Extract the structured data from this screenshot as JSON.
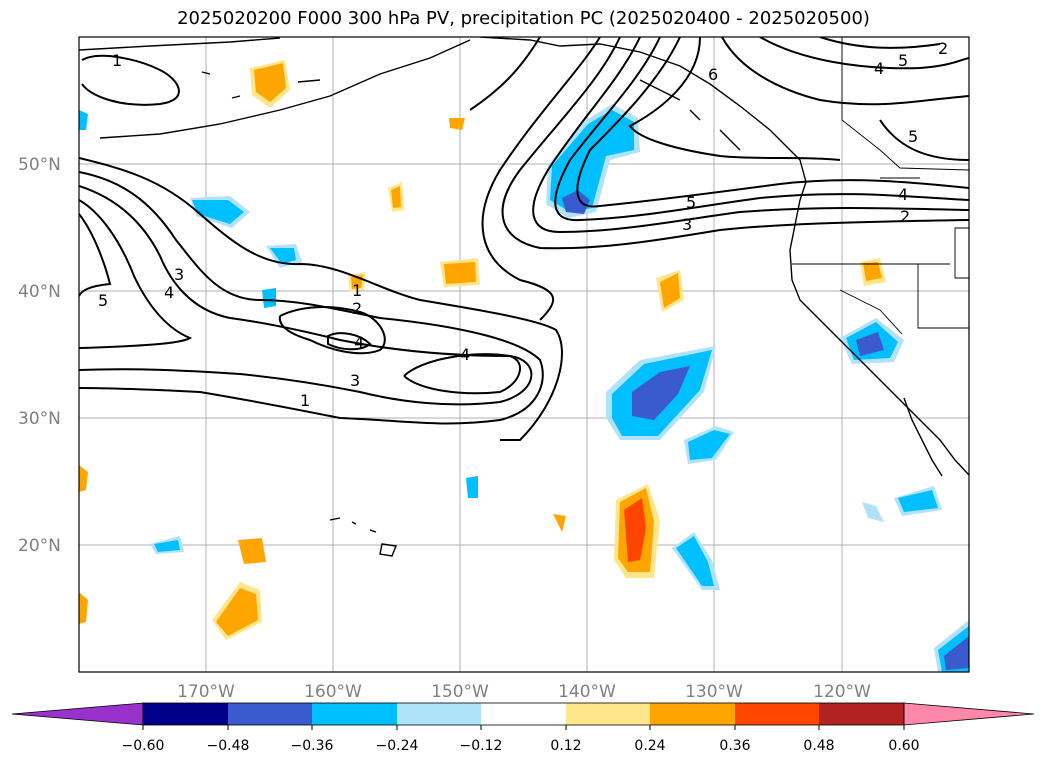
{
  "title": "2025020200 F000 300 hPa PV, precipitation PC (2025020400 - 2025020500)",
  "map": {
    "projection": "plate-carree",
    "lon_range": [
      -180,
      -110
    ],
    "lat_range": [
      10,
      60
    ],
    "lat_labels": [
      "20°N",
      "30°N",
      "40°N",
      "50°N"
    ],
    "lon_labels": [
      "170°W",
      "160°W",
      "150°W",
      "140°W",
      "130°W",
      "120°W"
    ],
    "grid_color": "#b0b0b0",
    "contour_color": "#000000",
    "pv_contour_labels": [
      "1",
      "1",
      "1",
      "2",
      "2",
      "3",
      "3",
      "3",
      "4",
      "4",
      "4",
      "4",
      "5",
      "5",
      "5",
      "6",
      "2"
    ]
  },
  "colorbar": {
    "tick_labels": [
      "−0.60",
      "−0.48",
      "−0.36",
      "−0.24",
      "−0.12",
      "0.12",
      "0.24",
      "0.36",
      "0.48",
      "0.60"
    ],
    "colors": [
      "#9932cc",
      "#00008b",
      "#3a5bcd",
      "#00bfff",
      "#b0e2fa",
      "#ffffff",
      "#ffe68a",
      "#ffa500",
      "#ff4500",
      "#b22222",
      "#ff88aa"
    ],
    "extend": "both"
  }
}
